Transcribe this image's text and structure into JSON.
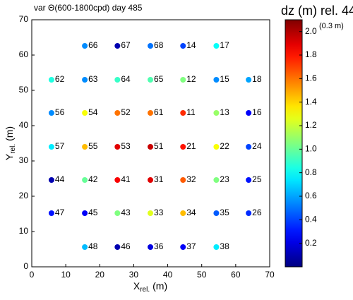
{
  "chart_data": {
    "type": "scatter",
    "title": "var Θ(600-1800cpd) day 485",
    "xlabel": {
      "main": "X",
      "sub": "rel.",
      "unit": "(m)"
    },
    "ylabel": {
      "main": "Y",
      "sub": "rel.",
      "unit": "(m)"
    },
    "xlim": [
      0,
      70
    ],
    "xticks": [
      0,
      10,
      20,
      30,
      40,
      50,
      60,
      70
    ],
    "ylim": [
      0,
      70
    ],
    "yticks": [
      0,
      10,
      20,
      30,
      40,
      50,
      60,
      70
    ],
    "colormap": "jet",
    "colorbar": {
      "label": "dz (m) rel. 44",
      "note": "(0.3 m)",
      "lim": [
        0,
        2.1
      ],
      "ticks": [
        0.2,
        0.4,
        0.6,
        0.8,
        {
          "value": 1,
          "label": "1.0"
        },
        1.2,
        1.4,
        1.6,
        1.8,
        {
          "value": 2,
          "label": "2.0"
        }
      ]
    },
    "labels": [
      "66",
      "67",
      "68",
      "14",
      "17",
      "62",
      "63",
      "64",
      "65",
      "12",
      "15",
      "18",
      "56",
      "54",
      "52",
      "61",
      "11",
      "13",
      "16",
      "57",
      "55",
      "53",
      "51",
      "21",
      "22",
      "24",
      "44",
      "42",
      "41",
      "31",
      "32",
      "23",
      "25",
      "47",
      "45",
      "43",
      "33",
      "34",
      "35",
      "26",
      "48",
      "46",
      "36",
      "37",
      "38"
    ],
    "x": [
      15.6,
      25.2,
      34.9,
      44.5,
      54.3,
      5.8,
      15.6,
      25.2,
      34.9,
      44.5,
      54.3,
      63.8,
      5.8,
      15.6,
      25.2,
      34.9,
      44.5,
      54.3,
      63.8,
      5.8,
      15.6,
      25.2,
      34.9,
      44.5,
      54.3,
      63.8,
      5.8,
      15.6,
      25.2,
      34.9,
      44.5,
      54.3,
      63.8,
      5.8,
      15.6,
      25.2,
      34.9,
      44.5,
      54.3,
      63.8,
      15.6,
      25.2,
      34.9,
      44.5,
      54.3
    ],
    "y": [
      62.6,
      62.6,
      62.6,
      62.6,
      62.6,
      53,
      53,
      53,
      53,
      53,
      53,
      53,
      43.6,
      43.6,
      43.6,
      43.6,
      43.6,
      43.6,
      43.6,
      34,
      34,
      34,
      34,
      34,
      34,
      34,
      24.6,
      24.6,
      24.6,
      24.6,
      24.6,
      24.6,
      24.6,
      15.2,
      15.2,
      15.2,
      15.2,
      15.2,
      15.2,
      15.2,
      5.6,
      5.6,
      5.6,
      5.6,
      5.6
    ],
    "values": [
      0.55,
      0.1,
      0.5,
      0.4,
      0.8,
      0.85,
      0.55,
      0.9,
      0.95,
      1.05,
      0.55,
      0.6,
      0.55,
      1.3,
      1.6,
      1.6,
      1.75,
      1.1,
      0.25,
      0.75,
      1.45,
      1.9,
      1.95,
      1.8,
      1.3,
      0.4,
      0.1,
      1.0,
      1.85,
      1.9,
      1.65,
      1.05,
      0.3,
      0.3,
      0.25,
      1.05,
      1.25,
      1.45,
      0.45,
      0.35,
      0.65,
      0.1,
      0.2,
      0.25,
      0.75
    ]
  }
}
